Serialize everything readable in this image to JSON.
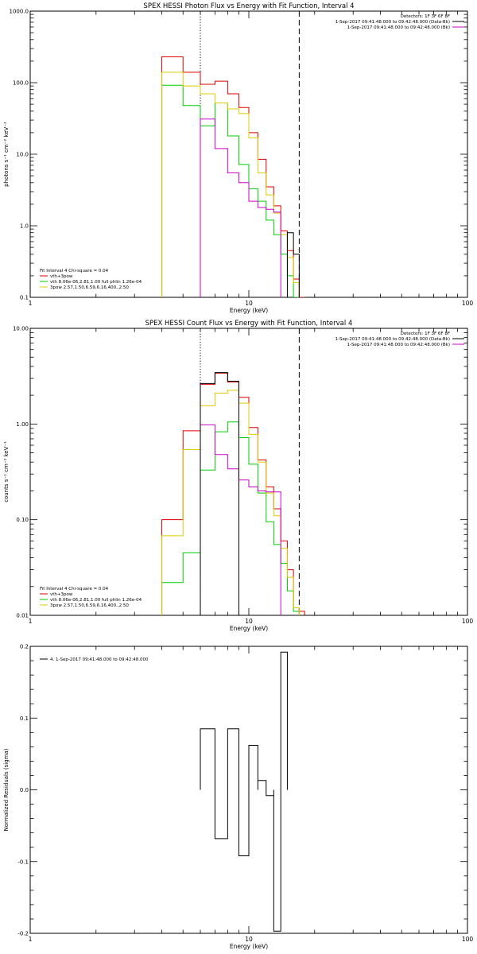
{
  "chart_data": [
    {
      "type": "line",
      "title": "SPEX HESSI Photon Flux vs Energy with Fit Function, Interval 4",
      "xlabel": "Energy (keV)",
      "ylabel": "photons s⁻¹ cm⁻² keV⁻¹",
      "xscale": "log",
      "yscale": "log",
      "xlim": [
        1,
        100
      ],
      "ylim": [
        0.1,
        1000
      ],
      "x_ticklabels": [
        "1",
        "10",
        "100"
      ],
      "y_ticklabels": [
        "0.1",
        "1.0",
        "10.0",
        "100.0",
        "1000.0"
      ],
      "vlines": [
        {
          "x": 6.0,
          "style": "dotted"
        },
        {
          "x": 17.0,
          "style": "dashed"
        }
      ],
      "info": {
        "detectors": "Detectors: 1F 3F 6F 8F",
        "line1": "1-Sep-2017 09:41:48.000 to 09:42:48.000 (Data-Bk)",
        "line2": "1-Sep-2017 09:41:48.000 to 09:42:48.000 (Bk)",
        "line1_color": "#000000",
        "line2_color": "#cc00cc"
      },
      "legend": {
        "title": "Fit Interval 4   Chi-square = 0.04",
        "entries": [
          {
            "label": "vth+3pow",
            "color": "#dd0000"
          },
          {
            "label": "vth 8.06e-06,2.81,1.00  full phlin 1.26e-04",
            "color": "#00cc00"
          },
          {
            "label": "3pow 2.57,1.50,6.59,6.16,400.,2.50",
            "color": "#ddcc00"
          }
        ]
      },
      "edges": [
        4.0,
        5.0,
        6.0,
        7.0,
        8.0,
        9.0,
        10.0,
        11.0,
        12.0,
        13.0,
        14.0,
        15.0,
        16.0,
        17.0,
        18.0,
        19.0
      ],
      "series": [
        {
          "name": "vth+3pow",
          "color": "#dd0000",
          "x0": 4.0,
          "values": [
            230,
            140,
            95,
            105,
            70,
            45,
            20,
            8.5,
            3.5,
            1.9,
            0.85,
            0.45,
            0.18,
            0.1
          ]
        },
        {
          "name": "vth 8.06e-06,2.81,1.00  full phlin 1.26e-04",
          "color": "#00cc00",
          "x0": 4.0,
          "values": [
            92,
            48,
            25,
            52,
            18,
            7.2,
            3.3,
            2.2,
            1.2,
            0.75,
            0.4,
            0.2,
            0.1
          ]
        },
        {
          "name": "3pow 2.57,1.50,6.59,6.16,400.,2.50",
          "color": "#ddcc00",
          "x0": 4.0,
          "values": [
            140,
            90,
            70,
            52,
            43,
            37,
            17,
            5.5,
            2.7,
            1.5,
            0.75,
            0.36,
            0.16
          ]
        },
        {
          "name": "Bk",
          "color": "#cc00cc",
          "x0": 6.0,
          "values": [
            31,
            12,
            5.5,
            4.0,
            2.2,
            1.8,
            1.7,
            1.55
          ]
        },
        {
          "name": "Data-Bk",
          "color": "#000000",
          "x0": 15.0,
          "values": [
            0.8,
            0.4
          ]
        }
      ]
    },
    {
      "type": "line",
      "title": "SPEX HESSI Count Flux vs Energy with Fit Function, Interval 4",
      "xlabel": "Energy (keV)",
      "ylabel": "counts s⁻¹ cm⁻² keV⁻¹",
      "xscale": "log",
      "yscale": "log",
      "xlim": [
        1,
        100
      ],
      "ylim": [
        0.01,
        10
      ],
      "x_ticklabels": [
        "1",
        "10",
        "100"
      ],
      "y_ticklabels": [
        "0.01",
        "0.10",
        "1.00",
        "10.00"
      ],
      "vlines": [
        {
          "x": 6.0,
          "style": "dotted"
        },
        {
          "x": 17.0,
          "style": "dashed"
        }
      ],
      "info": {
        "detectors": "Detectors: 1F 3F 6F 8F",
        "line1": "1-Sep-2017 09:41:48.000 to 09:42:48.000 (Data-Bk)",
        "line2": "1-Sep-2017 09:41:48.000 to 09:42:48.000 (Bk)",
        "line1_color": "#000000",
        "line2_color": "#cc00cc"
      },
      "legend": {
        "title": "Fit Interval 4   Chi-square = 0.04",
        "entries": [
          {
            "label": "vth+3pow",
            "color": "#dd0000"
          },
          {
            "label": "vth 8.06e-06,2.81,1.00  full phlin 1.26e-04",
            "color": "#00cc00"
          },
          {
            "label": "3pow 2.57,1.50,6.59,6.16,400.,2.50",
            "color": "#ddcc00"
          }
        ]
      },
      "edges": [
        4.0,
        5.0,
        6.0,
        7.0,
        8.0,
        9.0,
        10.0,
        11.0,
        12.0,
        13.0,
        14.0,
        15.0,
        16.0,
        17.0,
        18.0,
        19.0
      ],
      "series": [
        {
          "name": "vth+3pow",
          "color": "#dd0000",
          "x0": 4.0,
          "values": [
            0.1,
            0.85,
            2.6,
            3.4,
            2.75,
            1.9,
            0.92,
            0.42,
            0.22,
            0.13,
            0.06,
            0.03,
            0.012,
            0.011
          ]
        },
        {
          "name": "vth 8.06e-06,2.81,1.00  full phlin 1.26e-04",
          "color": "#00cc00",
          "x0": 4.0,
          "values": [
            0.022,
            0.045,
            0.33,
            0.83,
            1.05,
            0.72,
            0.38,
            0.19,
            0.095,
            0.055,
            0.035,
            0.018,
            0.011
          ]
        },
        {
          "name": "3pow 2.57,1.50,6.59,6.16,400.,2.50",
          "color": "#ddcc00",
          "x0": 4.0,
          "values": [
            0.068,
            0.54,
            1.55,
            2.1,
            2.25,
            1.65,
            0.78,
            0.4,
            0.19,
            0.11,
            0.05,
            0.025,
            0.012
          ]
        },
        {
          "name": "Bk",
          "color": "#cc00cc",
          "x0": 6.0,
          "values": [
            0.98,
            0.48,
            0.34,
            0.26,
            0.22,
            0.2,
            0.195,
            0.195
          ]
        },
        {
          "name": "Data-Bk",
          "color": "#000000",
          "x0": 6.0,
          "values": [
            2.65,
            3.45,
            2.8
          ]
        }
      ]
    },
    {
      "type": "line",
      "title": "",
      "xlabel": "Energy (keV)",
      "ylabel": "Normalized Residuals (sigma)",
      "xscale": "log",
      "yscale": "linear",
      "xlim": [
        1,
        100
      ],
      "ylim": [
        -0.2,
        0.2
      ],
      "x_ticklabels": [
        "1",
        "10",
        "100"
      ],
      "y_ticklabels": [
        "-0.2",
        "-0.1",
        "0.0",
        "0.1",
        "0.2"
      ],
      "legend": {
        "title": "",
        "entries": [
          {
            "label": "4.  1-Sep-2017 09:41:48.000 to 09:42:48.000",
            "color": "#000000"
          }
        ]
      },
      "edges": [
        6.0,
        7.0,
        8.0,
        9.0,
        10.0,
        11.0,
        12.0,
        13.0,
        14.0,
        15.0,
        16.0
      ],
      "series": [
        {
          "name": "4.  1-Sep-2017 09:41:48.000 to 09:42:48.000",
          "color": "#000000",
          "x0": 6.0,
          "values": [
            0.085,
            -0.068,
            0.085,
            -0.092,
            0.062,
            0.013,
            -0.008,
            -0.197,
            0.192
          ],
          "baseline": 0.0,
          "close_to_bottom": true
        }
      ]
    }
  ]
}
